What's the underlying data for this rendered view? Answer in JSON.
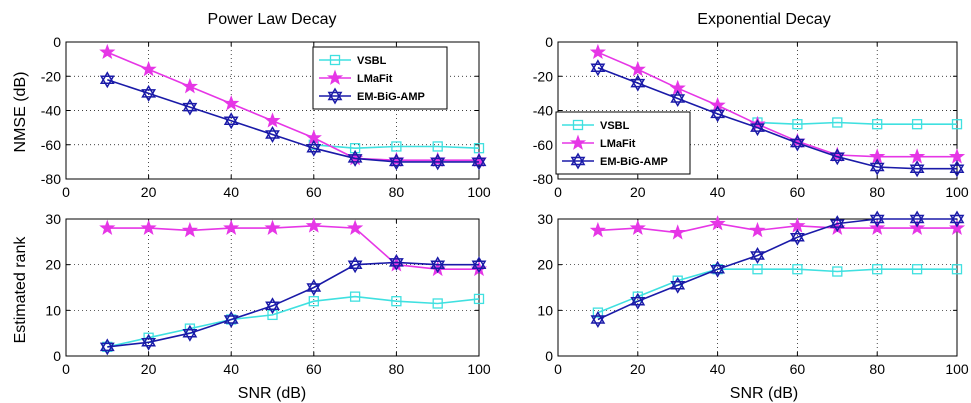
{
  "colors": {
    "VSBL": "#3fe0e0",
    "LMaFit": "#e636e6",
    "EM-BiG-AMP": "#1a1aa8",
    "grid": "#000000",
    "axes": "#000000"
  },
  "chart_data": [
    {
      "type": "line",
      "title": "Power Law Decay",
      "xlabel": "",
      "ylabel": "NMSE (dB)",
      "xlim": [
        0,
        100
      ],
      "ylim": [
        -80,
        0
      ],
      "xticks": [
        0,
        20,
        40,
        60,
        80,
        100
      ],
      "yticks": [
        -80,
        -60,
        -40,
        -20,
        0
      ],
      "grid": true,
      "legend": "top-right",
      "x": [
        10,
        20,
        30,
        40,
        50,
        60,
        70,
        80,
        90,
        100
      ],
      "series": [
        {
          "name": "VSBL",
          "marker": "square",
          "values": [
            null,
            null,
            null,
            null,
            null,
            -60,
            -62,
            -61,
            -61,
            -62
          ]
        },
        {
          "name": "LMaFit",
          "marker": "star",
          "values": [
            -6,
            -16,
            -26,
            -36,
            -46,
            -56,
            -68,
            -69,
            -69,
            -69
          ]
        },
        {
          "name": "EM-BiG-AMP",
          "marker": "hexagram",
          "values": [
            -22,
            -30,
            -38,
            -46,
            -54,
            -62,
            -68,
            -70,
            -70,
            -70
          ]
        }
      ]
    },
    {
      "type": "line",
      "title": "Exponential Decay",
      "xlabel": "",
      "ylabel": "",
      "xlim": [
        0,
        100
      ],
      "ylim": [
        -80,
        0
      ],
      "xticks": [
        0,
        20,
        40,
        60,
        80,
        100
      ],
      "yticks": [
        -80,
        -60,
        -40,
        -20,
        0
      ],
      "grid": true,
      "legend": "center-left",
      "x": [
        10,
        20,
        30,
        40,
        50,
        60,
        70,
        80,
        90,
        100
      ],
      "series": [
        {
          "name": "VSBL",
          "marker": "square",
          "values": [
            null,
            null,
            null,
            null,
            -47,
            -48,
            -47,
            -48,
            -48,
            -48
          ]
        },
        {
          "name": "LMaFit",
          "marker": "star",
          "values": [
            -6,
            -16,
            -27,
            -37,
            -48,
            -58,
            -66,
            -67,
            -67,
            -67
          ]
        },
        {
          "name": "EM-BiG-AMP",
          "marker": "hexagram",
          "values": [
            -15,
            -24,
            -33,
            -42,
            -50,
            -59,
            -67,
            -73,
            -74,
            -74
          ]
        }
      ]
    },
    {
      "type": "line",
      "title": "",
      "xlabel": "SNR (dB)",
      "ylabel": "Estimated rank",
      "xlim": [
        0,
        100
      ],
      "ylim": [
        0,
        30
      ],
      "xticks": [
        0,
        20,
        40,
        60,
        80,
        100
      ],
      "yticks": [
        0,
        10,
        20,
        30
      ],
      "grid": true,
      "x": [
        10,
        20,
        30,
        40,
        50,
        60,
        70,
        80,
        90,
        100
      ],
      "series": [
        {
          "name": "VSBL",
          "marker": "square",
          "values": [
            2,
            4,
            6,
            8,
            9,
            12,
            13,
            12,
            11.5,
            12.5
          ]
        },
        {
          "name": "LMaFit",
          "marker": "star",
          "values": [
            28,
            28,
            27.5,
            28,
            28,
            28.5,
            28,
            20,
            19,
            19
          ]
        },
        {
          "name": "EM-BiG-AMP",
          "marker": "hexagram",
          "values": [
            2,
            3,
            5,
            8,
            11,
            15,
            20,
            20.5,
            20,
            20
          ]
        }
      ]
    },
    {
      "type": "line",
      "title": "",
      "xlabel": "SNR (dB)",
      "ylabel": "",
      "xlim": [
        0,
        100
      ],
      "ylim": [
        0,
        30
      ],
      "xticks": [
        0,
        20,
        40,
        60,
        80,
        100
      ],
      "yticks": [
        0,
        10,
        20,
        30
      ],
      "grid": true,
      "x": [
        10,
        20,
        30,
        40,
        50,
        60,
        70,
        80,
        90,
        100
      ],
      "series": [
        {
          "name": "VSBL",
          "marker": "square",
          "values": [
            9.5,
            13,
            16.5,
            19,
            19,
            19,
            18.5,
            19,
            19,
            19
          ]
        },
        {
          "name": "LMaFit",
          "marker": "star",
          "values": [
            27.5,
            28,
            27,
            29,
            27.5,
            28.5,
            28,
            28,
            28,
            28
          ]
        },
        {
          "name": "EM-BiG-AMP",
          "marker": "hexagram",
          "values": [
            8,
            12,
            15.5,
            19,
            22,
            26,
            29,
            30,
            30,
            30
          ]
        }
      ]
    }
  ]
}
